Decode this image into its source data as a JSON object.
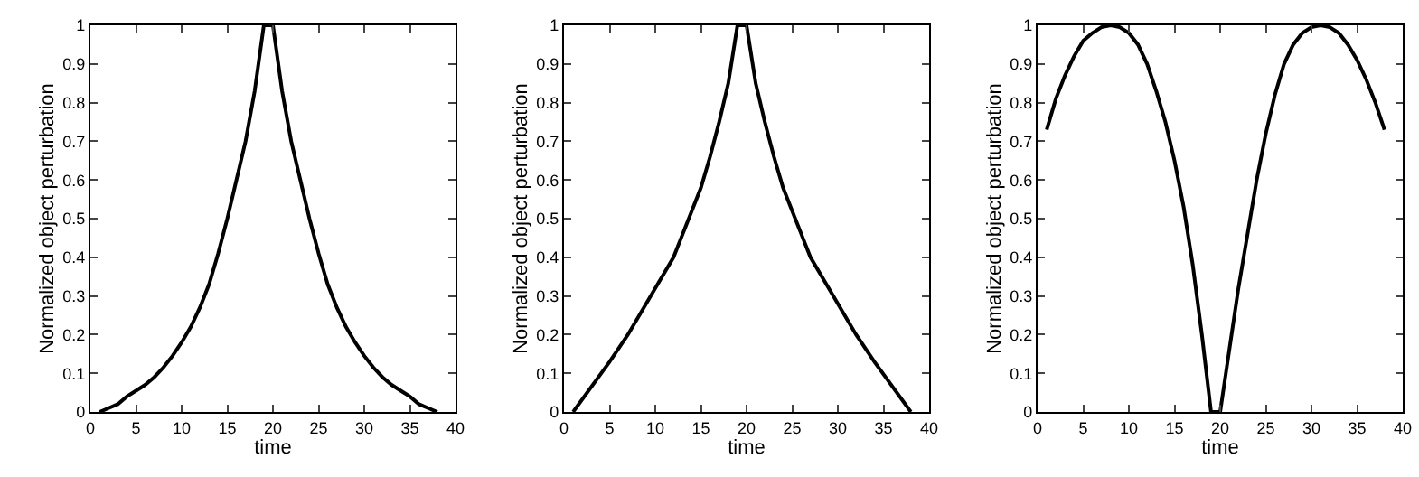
{
  "chart_data": [
    {
      "type": "line",
      "xlabel": "time",
      "ylabel": "Normalized object perturbation",
      "x": [
        1,
        2,
        3,
        4,
        5,
        6,
        7,
        8,
        9,
        10,
        11,
        12,
        13,
        14,
        15,
        16,
        17,
        18,
        19,
        20,
        21,
        22,
        23,
        24,
        25,
        26,
        27,
        28,
        29,
        30,
        31,
        32,
        33,
        34,
        35,
        36,
        37,
        38
      ],
      "series": [
        {
          "color": "#000000",
          "values": [
            0,
            0.01,
            0.02,
            0.04,
            0.055,
            0.07,
            0.09,
            0.115,
            0.145,
            0.18,
            0.22,
            0.27,
            0.33,
            0.41,
            0.5,
            0.6,
            0.7,
            0.83,
            1,
            1,
            0.83,
            0.7,
            0.6,
            0.5,
            0.41,
            0.33,
            0.27,
            0.22,
            0.18,
            0.145,
            0.115,
            0.09,
            0.07,
            0.055,
            0.04,
            0.02,
            0.01,
            0
          ]
        }
      ],
      "xlim": [
        0,
        40
      ],
      "ylim": [
        0,
        1
      ],
      "xticks": [
        0,
        5,
        10,
        15,
        20,
        25,
        30,
        35,
        40
      ],
      "yticks": [
        0,
        0.1,
        0.2,
        0.3,
        0.4,
        0.5,
        0.6,
        0.7,
        0.8,
        0.9,
        1
      ]
    },
    {
      "type": "line",
      "xlabel": "time",
      "ylabel": "Normalized object perturbation",
      "x": [
        1,
        5,
        7,
        10,
        12,
        13,
        14,
        15,
        16,
        17,
        18,
        19,
        20,
        21,
        22,
        23,
        24,
        25,
        26,
        27,
        29,
        32,
        34,
        38
      ],
      "series": [
        {
          "color": "#000000",
          "values": [
            0,
            0.13,
            0.2,
            0.32,
            0.4,
            0.46,
            0.52,
            0.58,
            0.66,
            0.75,
            0.85,
            1,
            1,
            0.85,
            0.75,
            0.66,
            0.58,
            0.52,
            0.46,
            0.4,
            0.32,
            0.2,
            0.13,
            0
          ]
        }
      ],
      "xlim": [
        0,
        40
      ],
      "ylim": [
        0,
        1
      ],
      "xticks": [
        0,
        5,
        10,
        15,
        20,
        25,
        30,
        35,
        40
      ],
      "yticks": [
        0,
        0.1,
        0.2,
        0.3,
        0.4,
        0.5,
        0.6,
        0.7,
        0.8,
        0.9,
        1
      ]
    },
    {
      "type": "line",
      "xlabel": "time",
      "ylabel": "Normalized object perturbation",
      "x": [
        1,
        2,
        3,
        4,
        5,
        6,
        7,
        8,
        9,
        10,
        11,
        12,
        13,
        14,
        15,
        16,
        17,
        18,
        19,
        20,
        21,
        22,
        23,
        24,
        25,
        26,
        27,
        28,
        29,
        30,
        31,
        32,
        33,
        34,
        35,
        36,
        37,
        38
      ],
      "series": [
        {
          "color": "#000000",
          "values": [
            0.73,
            0.81,
            0.87,
            0.92,
            0.96,
            0.98,
            0.995,
            1,
            0.995,
            0.98,
            0.95,
            0.9,
            0.83,
            0.75,
            0.65,
            0.53,
            0.38,
            0.2,
            0,
            0,
            0.16,
            0.32,
            0.46,
            0.6,
            0.72,
            0.82,
            0.9,
            0.95,
            0.98,
            0.995,
            1,
            0.995,
            0.98,
            0.95,
            0.91,
            0.86,
            0.8,
            0.73
          ]
        }
      ],
      "xlim": [
        0,
        40
      ],
      "ylim": [
        0,
        1
      ],
      "xticks": [
        0,
        5,
        10,
        15,
        20,
        25,
        30,
        35,
        40
      ],
      "yticks": [
        0,
        0.1,
        0.2,
        0.3,
        0.4,
        0.5,
        0.6,
        0.7,
        0.8,
        0.9,
        1
      ]
    }
  ]
}
